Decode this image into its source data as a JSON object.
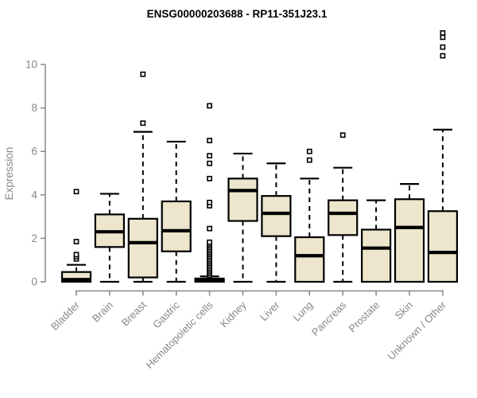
{
  "chart_data": {
    "type": "boxplot",
    "title": "ENSG00000203688 - RP11-351J23.1",
    "ylabel": "Expression",
    "xlabel": "",
    "y_ticks": [
      0,
      2,
      4,
      6,
      8,
      10
    ],
    "ylim": [
      0,
      11.6
    ],
    "grid": false,
    "legend": "none",
    "categories": [
      "Bladder",
      "Brain",
      "Breast",
      "Gastric",
      "Hematopoietic cells",
      "Kidney",
      "Liver",
      "Lung",
      "Pancreas",
      "Prostate",
      "Skin",
      "Unknown / Other"
    ],
    "boxes": [
      {
        "category": "Bladder",
        "min": 0,
        "q1": 0,
        "median": 0.1,
        "q3": 0.45,
        "max": 0.78,
        "outliers": [
          1.05,
          1.15,
          1.25,
          1.85,
          4.15
        ]
      },
      {
        "category": "Brain",
        "min": 0,
        "q1": 1.6,
        "median": 2.3,
        "q3": 3.1,
        "max": 4.05,
        "outliers": []
      },
      {
        "category": "Breast",
        "min": 0,
        "q1": 0.2,
        "median": 1.8,
        "q3": 2.9,
        "max": 6.9,
        "outliers": [
          7.3,
          9.55
        ]
      },
      {
        "category": "Gastric",
        "min": 0,
        "q1": 1.4,
        "median": 2.35,
        "q3": 3.7,
        "max": 6.45,
        "outliers": []
      },
      {
        "category": "Hematopoietic cells",
        "min": 0,
        "q1": 0,
        "median": 0.05,
        "q3": 0.15,
        "max": 0.25,
        "outliers": [
          0.3,
          0.38,
          0.46,
          0.54,
          0.62,
          0.7,
          0.78,
          0.86,
          0.94,
          1.02,
          1.1,
          1.18,
          1.26,
          1.34,
          1.42,
          1.5,
          1.58,
          1.66,
          1.74,
          1.82,
          2.45,
          3.5,
          3.65,
          4.75,
          5.45,
          5.8,
          6.5,
          8.1
        ]
      },
      {
        "category": "Kidney",
        "min": 0,
        "q1": 2.8,
        "median": 4.2,
        "q3": 4.75,
        "max": 5.9,
        "outliers": []
      },
      {
        "category": "Liver",
        "min": 0,
        "q1": 2.1,
        "median": 3.15,
        "q3": 3.95,
        "max": 5.45,
        "outliers": []
      },
      {
        "category": "Lung",
        "min": 0,
        "q1": 0,
        "median": 1.2,
        "q3": 2.05,
        "max": 4.75,
        "outliers": [
          5.6,
          6.0
        ]
      },
      {
        "category": "Pancreas",
        "min": 0,
        "q1": 2.15,
        "median": 3.15,
        "q3": 3.75,
        "max": 5.25,
        "outliers": [
          6.75
        ]
      },
      {
        "category": "Prostate",
        "min": 0,
        "q1": 0,
        "median": 1.55,
        "q3": 2.4,
        "max": 3.75,
        "outliers": []
      },
      {
        "category": "Skin",
        "min": 0,
        "q1": 0,
        "median": 2.5,
        "q3": 3.8,
        "max": 4.5,
        "outliers": []
      },
      {
        "category": "Unknown / Other",
        "min": 0,
        "q1": 0,
        "median": 1.35,
        "q3": 3.25,
        "max": 7.0,
        "outliers": [
          10.4,
          10.8,
          11.25,
          11.45
        ]
      }
    ],
    "colors": {
      "box_fill": "#EDE6CC",
      "box_stroke": "#000000",
      "median": "#000000",
      "whisker": "#000000",
      "outlier_stroke": "#000000",
      "outlier_fill": "#ffffff",
      "axis": "#878787",
      "title": "#000000",
      "background": "#ffffff"
    }
  }
}
